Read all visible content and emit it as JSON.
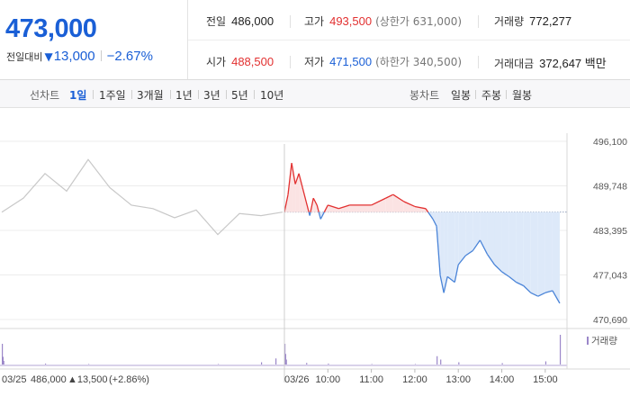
{
  "quote": {
    "current_price": "473,000",
    "change_label": "전일대비",
    "change_arrow": "▼",
    "change_amount": "13,000",
    "change_pct": "−2.67%"
  },
  "stats": {
    "prev_close": {
      "label": "전일",
      "value": "486,000"
    },
    "high": {
      "label": "고가",
      "value": "493,500",
      "sub": "(상한가 631,000)"
    },
    "volume": {
      "label": "거래량",
      "value": "772,277"
    },
    "open": {
      "label": "시가",
      "value": "488,500"
    },
    "low": {
      "label": "저가",
      "value": "471,500",
      "sub": "(하한가 340,500)"
    },
    "trade_value": {
      "label": "거래대금",
      "value": "372,647 백만"
    }
  },
  "period_tabs": {
    "label": "선차트",
    "items": [
      "1일",
      "1주일",
      "3개월",
      "1년",
      "3년",
      "5년",
      "10년"
    ],
    "active": "1일"
  },
  "candle_tabs": {
    "label": "봉차트",
    "items": [
      "일봉",
      "주봉",
      "월봉"
    ]
  },
  "colors": {
    "up": "#e23030",
    "down": "#1a5fd6",
    "prev_day_line": "#c8c8c8",
    "fill_up": "#fbe3e3",
    "fill_down": "#dde9f9",
    "volume_bar": "#9b87c9"
  },
  "chart_data": {
    "type": "line",
    "title": "",
    "xlabel": "",
    "ylabel": "",
    "ylim": [
      470690,
      496100
    ],
    "yticks": [
      "496,100",
      "489,748",
      "483,395",
      "477,043",
      "470,690"
    ],
    "reference_price": 486000,
    "prev_day_summary": {
      "date": "03/25",
      "close": "486,000",
      "arrow": "▲",
      "change": "13,500",
      "pct": "(+2.86%)"
    },
    "x_labels": [
      "03/26",
      "10:00",
      "11:00",
      "12:00",
      "13:00",
      "14:00",
      "15:00"
    ],
    "volume_legend": "거래량",
    "prev_day_series": [
      [
        "09:00",
        486000
      ],
      [
        "09:30",
        488000
      ],
      [
        "10:00",
        491500
      ],
      [
        "10:30",
        489000
      ],
      [
        "11:00",
        493500
      ],
      [
        "11:30",
        489500
      ],
      [
        "12:00",
        487000
      ],
      [
        "12:30",
        486500
      ],
      [
        "13:00",
        485200
      ],
      [
        "13:30",
        486300
      ],
      [
        "14:00",
        482800
      ],
      [
        "14:30",
        485800
      ],
      [
        "15:00",
        485500
      ],
      [
        "15:30",
        486000
      ]
    ],
    "today_series": [
      [
        "09:00",
        486000
      ],
      [
        "09:05",
        488500
      ],
      [
        "09:10",
        493000
      ],
      [
        "09:15",
        490000
      ],
      [
        "09:20",
        491500
      ],
      [
        "09:25",
        489500
      ],
      [
        "09:30",
        487500
      ],
      [
        "09:35",
        485500
      ],
      [
        "09:40",
        488000
      ],
      [
        "09:45",
        487000
      ],
      [
        "09:50",
        485000
      ],
      [
        "10:00",
        487000
      ],
      [
        "10:15",
        486500
      ],
      [
        "10:30",
        487000
      ],
      [
        "11:00",
        487000
      ],
      [
        "11:20",
        488000
      ],
      [
        "11:30",
        488500
      ],
      [
        "11:45",
        487500
      ],
      [
        "12:00",
        486800
      ],
      [
        "12:15",
        486500
      ],
      [
        "12:25",
        485000
      ],
      [
        "12:30",
        484000
      ],
      [
        "12:35",
        477000
      ],
      [
        "12:40",
        474500
      ],
      [
        "12:45",
        476800
      ],
      [
        "12:55",
        476000
      ],
      [
        "13:00",
        478500
      ],
      [
        "13:10",
        479800
      ],
      [
        "13:20",
        480500
      ],
      [
        "13:30",
        482000
      ],
      [
        "13:40",
        480000
      ],
      [
        "13:50",
        478500
      ],
      [
        "14:00",
        477500
      ],
      [
        "14:10",
        476800
      ],
      [
        "14:20",
        476000
      ],
      [
        "14:30",
        475500
      ],
      [
        "14:40",
        474500
      ],
      [
        "14:50",
        474000
      ],
      [
        "15:00",
        474500
      ],
      [
        "15:10",
        474800
      ],
      [
        "15:20",
        473000
      ]
    ],
    "prev_day_volume": [
      [
        "09:00",
        1.0
      ],
      [
        "09:01",
        0.42
      ],
      [
        "09:02",
        0.24
      ],
      [
        "10:00",
        0.12
      ],
      [
        "11:00",
        0.1
      ],
      [
        "12:00",
        0.08
      ],
      [
        "13:00",
        0.08
      ],
      [
        "14:00",
        0.1
      ],
      [
        "15:00",
        0.18
      ],
      [
        "15:20",
        0.35
      ]
    ],
    "today_volume": [
      [
        "09:00",
        1.0
      ],
      [
        "09:01",
        0.55
      ],
      [
        "09:02",
        0.3
      ],
      [
        "09:30",
        0.15
      ],
      [
        "10:00",
        0.12
      ],
      [
        "11:00",
        0.1
      ],
      [
        "12:00",
        0.1
      ],
      [
        "12:30",
        0.45
      ],
      [
        "12:35",
        0.3
      ],
      [
        "13:00",
        0.18
      ],
      [
        "14:00",
        0.14
      ],
      [
        "15:00",
        0.22
      ],
      [
        "15:20",
        1.4
      ]
    ]
  }
}
